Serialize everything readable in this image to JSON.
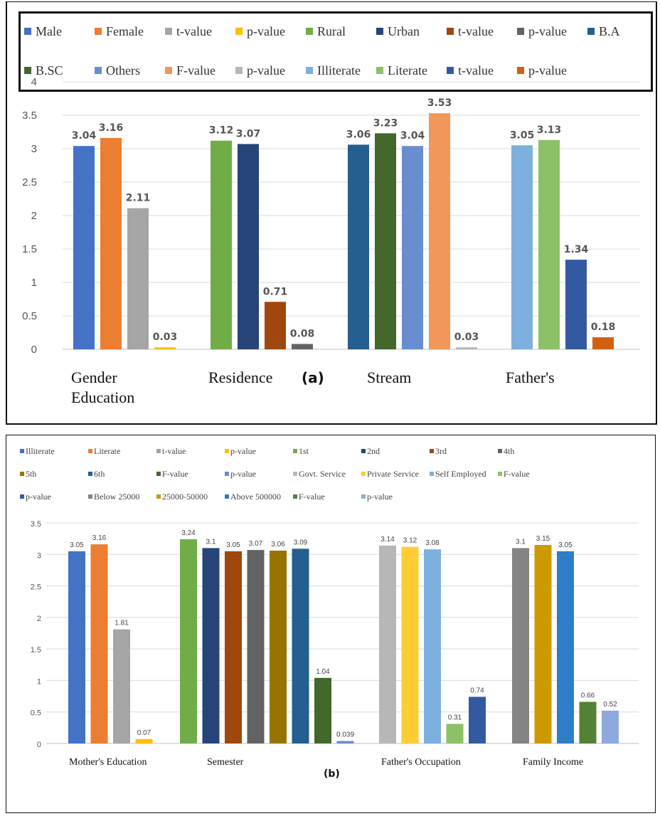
{
  "chart_data": [
    {
      "id": "a",
      "type": "bar",
      "panel_label": "(a)",
      "ylim": [
        0,
        4
      ],
      "yticks": [
        "0",
        "0.5",
        "1",
        "1.5",
        "2",
        "2.5",
        "3",
        "3.5",
        "4"
      ],
      "legend": [
        {
          "name": "Male",
          "color": "#4472C4"
        },
        {
          "name": "Female",
          "color": "#ED7D31"
        },
        {
          "name": "t-value",
          "color": "#A5A5A5"
        },
        {
          "name": "p-value",
          "color": "#FFC000"
        },
        {
          "name": "Rural",
          "color": "#70AD47"
        },
        {
          "name": "Urban",
          "color": "#264478"
        },
        {
          "name": "t-value",
          "color": "#9E480E"
        },
        {
          "name": "p-value",
          "color": "#636363"
        },
        {
          "name": "B.A",
          "color": "#255E91"
        },
        {
          "name": "B.SC",
          "color": "#43682B"
        },
        {
          "name": "Others",
          "color": "#698ED0"
        },
        {
          "name": "F-value",
          "color": "#F1975A"
        },
        {
          "name": "p-value",
          "color": "#B7B7B7"
        },
        {
          "name": "Illiterate",
          "color": "#7CAFDD"
        },
        {
          "name": "Literate",
          "color": "#8CC168"
        },
        {
          "name": "t-value",
          "color": "#335AA1"
        },
        {
          "name": "p-value",
          "color": "#D26012"
        }
      ],
      "groups": [
        {
          "category": [
            "Gender",
            "Education"
          ],
          "bars": [
            {
              "series": "Male",
              "value": 3.04,
              "label": "3.04",
              "color": "#4472C4"
            },
            {
              "series": "Female",
              "value": 3.16,
              "label": "3.16",
              "color": "#ED7D31"
            },
            {
              "series": "t-value",
              "value": 2.11,
              "label": "2.11",
              "color": "#A5A5A5"
            },
            {
              "series": "p-value",
              "value": 0.03,
              "label": "0.03",
              "color": "#FFC000"
            }
          ]
        },
        {
          "category": [
            "Residence"
          ],
          "bars": [
            {
              "series": "Rural",
              "value": 3.12,
              "label": "3.12",
              "color": "#70AD47"
            },
            {
              "series": "Urban",
              "value": 3.07,
              "label": "3.07",
              "color": "#264478"
            },
            {
              "series": "t-value",
              "value": 0.71,
              "label": "0.71",
              "color": "#9E480E"
            },
            {
              "series": "p-value",
              "value": 0.08,
              "label": "0.08",
              "color": "#636363"
            }
          ]
        },
        {
          "category": [
            "Stream"
          ],
          "bars": [
            {
              "series": "B.A",
              "value": 3.06,
              "label": "3.06",
              "color": "#255E91"
            },
            {
              "series": "B.SC",
              "value": 3.23,
              "label": "3.23",
              "color": "#43682B"
            },
            {
              "series": "Others",
              "value": 3.04,
              "label": "3.04",
              "color": "#698ED0"
            },
            {
              "series": "F-value",
              "value": 3.53,
              "label": "3.53",
              "color": "#F1975A"
            },
            {
              "series": "p-value",
              "value": 0.03,
              "label": "0.03",
              "color": "#B7B7B7"
            }
          ]
        },
        {
          "category": [
            "Father's"
          ],
          "bars": [
            {
              "series": "Illiterate",
              "value": 3.05,
              "label": "3.05",
              "color": "#7CAFDD"
            },
            {
              "series": "Literate",
              "value": 3.13,
              "label": "3.13",
              "color": "#8CC168"
            },
            {
              "series": "t-value",
              "value": 1.34,
              "label": "1.34",
              "color": "#335AA1"
            },
            {
              "series": "p-value",
              "value": 0.18,
              "label": "0.18",
              "color": "#D26012"
            }
          ]
        }
      ]
    },
    {
      "id": "b",
      "type": "bar",
      "panel_label": "(b)",
      "ylim": [
        0,
        3.5
      ],
      "yticks": [
        "0",
        "0.5",
        "1",
        "1.5",
        "2",
        "2.5",
        "3",
        "3.5"
      ],
      "legend": [
        {
          "name": "Illiterate",
          "color": "#4472C4"
        },
        {
          "name": "Literate",
          "color": "#ED7D31"
        },
        {
          "name": "t-value",
          "color": "#A5A5A5"
        },
        {
          "name": "p-value",
          "color": "#FFC000"
        },
        {
          "name": "1st",
          "color": "#70AD47"
        },
        {
          "name": "2nd",
          "color": "#264478"
        },
        {
          "name": "3rd",
          "color": "#9E480E"
        },
        {
          "name": "4th",
          "color": "#636363"
        },
        {
          "name": "5th",
          "color": "#997300"
        },
        {
          "name": "6th",
          "color": "#255E91"
        },
        {
          "name": "F-value",
          "color": "#43682B"
        },
        {
          "name": "p-value",
          "color": "#698ED0"
        },
        {
          "name": "Govt. Service",
          "color": "#B7B7B7"
        },
        {
          "name": "Private Service",
          "color": "#FFCD33"
        },
        {
          "name": "Self Employed",
          "color": "#7CAFDD"
        },
        {
          "name": "F-value",
          "color": "#8CC168"
        },
        {
          "name": "p-value",
          "color": "#335AA1"
        },
        {
          "name": "Below 25000",
          "color": "#848484"
        },
        {
          "name": "25000-50000",
          "color": "#CC9A00"
        },
        {
          "name": "Above 500000",
          "color": "#2E7EC7"
        },
        {
          "name": "F-value",
          "color": "#548235"
        },
        {
          "name": "p-value",
          "color": "#8EA9DB"
        }
      ],
      "groups": [
        {
          "category": [
            "Mother's Education"
          ],
          "bars": [
            {
              "series": "Illiterate",
              "value": 3.05,
              "label": "3.05",
              "color": "#4472C4"
            },
            {
              "series": "Literate",
              "value": 3.16,
              "label": "3.16",
              "color": "#ED7D31"
            },
            {
              "series": "t-value",
              "value": 1.81,
              "label": "1.81",
              "color": "#A5A5A5"
            },
            {
              "series": "p-value",
              "value": 0.07,
              "label": "0.07",
              "color": "#FFC000"
            }
          ]
        },
        {
          "category": [
            "Semester"
          ],
          "bars": [
            {
              "series": "1st",
              "value": 3.24,
              "label": "3.24",
              "color": "#70AD47"
            },
            {
              "series": "2nd",
              "value": 3.1,
              "label": "3.1",
              "color": "#264478"
            },
            {
              "series": "3rd",
              "value": 3.05,
              "label": "3.05",
              "color": "#9E480E"
            },
            {
              "series": "4th",
              "value": 3.07,
              "label": "3.07",
              "color": "#636363"
            },
            {
              "series": "5th",
              "value": 3.06,
              "label": "3.06",
              "color": "#997300"
            },
            {
              "series": "6th",
              "value": 3.09,
              "label": "3.09",
              "color": "#255E91"
            },
            {
              "series": "F-value",
              "value": 1.04,
              "label": "1.04",
              "color": "#43682B"
            },
            {
              "series": "p-value",
              "value": 0.039,
              "label": "0.039",
              "color": "#698ED0"
            }
          ]
        },
        {
          "category": [
            "Father's Occupation"
          ],
          "bars": [
            {
              "series": "Govt. Service",
              "value": 3.14,
              "label": "3.14",
              "color": "#B7B7B7"
            },
            {
              "series": "Private Service",
              "value": 3.12,
              "label": "3.12",
              "color": "#FFCD33"
            },
            {
              "series": "Self Employed",
              "value": 3.08,
              "label": "3.08",
              "color": "#7CAFDD"
            },
            {
              "series": "F-value",
              "value": 0.31,
              "label": "0.31",
              "color": "#8CC168"
            },
            {
              "series": "p-value",
              "value": 0.74,
              "label": "0.74",
              "color": "#335AA1"
            }
          ]
        },
        {
          "category": [
            "Family Income"
          ],
          "bars": [
            {
              "series": "Below 25000",
              "value": 3.1,
              "label": "3.1",
              "color": "#848484"
            },
            {
              "series": "25000-50000",
              "value": 3.15,
              "label": "3.15",
              "color": "#CC9A00"
            },
            {
              "series": "Above 500000",
              "value": 3.05,
              "label": "3.05",
              "color": "#2E7EC7"
            },
            {
              "series": "F-value",
              "value": 0.66,
              "label": "0.66",
              "color": "#548235"
            },
            {
              "series": "p-value",
              "value": 0.52,
              "label": "0.52",
              "color": "#8EA9DB"
            }
          ]
        }
      ]
    }
  ]
}
